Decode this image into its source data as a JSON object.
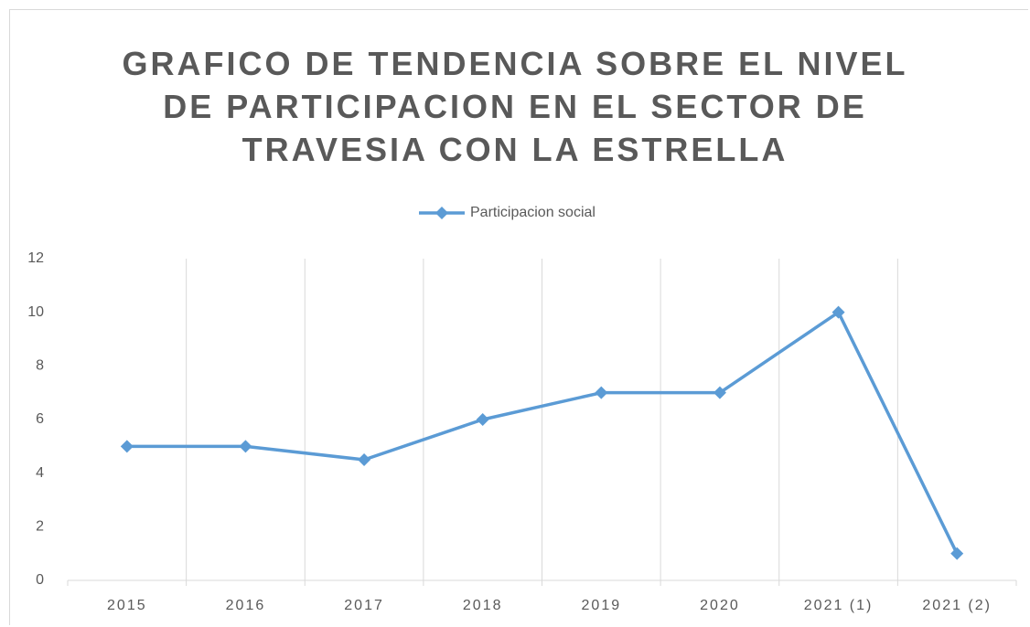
{
  "chart_data": {
    "type": "line",
    "title": "GRAFICO DE TENDENCIA SOBRE EL NIVEL DE PARTICIPACION EN EL SECTOR DE TRAVESIA CON LA ESTRELLA",
    "categories": [
      "2015",
      "2016",
      "2017",
      "2018",
      "2019",
      "2020",
      "2021 (1)",
      "2021 (2)"
    ],
    "series": [
      {
        "name": "Participacion social",
        "color": "#5b9bd5",
        "values": [
          5,
          5,
          4.5,
          6,
          7,
          7,
          10,
          1
        ]
      }
    ],
    "ylim": [
      0,
      12
    ],
    "yticks": [
      0,
      2,
      4,
      6,
      8,
      10,
      12
    ],
    "legend": "top",
    "grid": "vertical"
  }
}
